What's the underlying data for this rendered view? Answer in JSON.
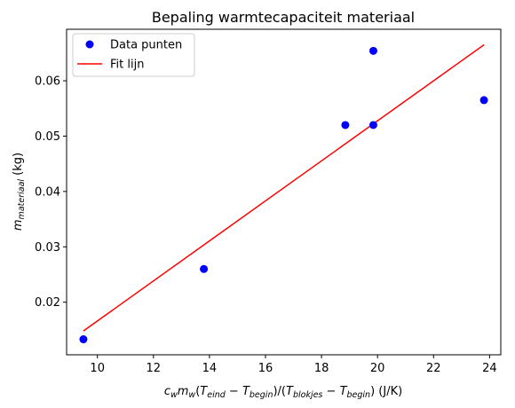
{
  "chart_data": {
    "type": "scatter",
    "title": "Bepaling warmtecapaciteit materiaal",
    "xlabel": {
      "parts": [
        {
          "t": "c",
          "i": true
        },
        {
          "t": "w",
          "i": true,
          "sub": true
        },
        {
          "t": "m",
          "i": true
        },
        {
          "t": "w",
          "i": true,
          "sub": true
        },
        {
          "t": "(",
          "i": false
        },
        {
          "t": "T",
          "i": true
        },
        {
          "t": "eind",
          "i": true,
          "sub": true
        },
        {
          "t": " − ",
          "i": false
        },
        {
          "t": "T",
          "i": true
        },
        {
          "t": "begin",
          "i": true,
          "sub": true
        },
        {
          "t": ")/(",
          "i": false
        },
        {
          "t": "T",
          "i": true
        },
        {
          "t": "blokjes",
          "i": true,
          "sub": true
        },
        {
          "t": " − ",
          "i": false
        },
        {
          "t": "T",
          "i": true
        },
        {
          "t": "begin",
          "i": true,
          "sub": true
        },
        {
          "t": ")  (J/K)",
          "i": false
        }
      ]
    },
    "ylabel": {
      "parts": [
        {
          "t": "m",
          "i": true
        },
        {
          "t": "materiaal",
          "i": true,
          "sub": true
        },
        {
          "t": " (kg)",
          "i": false
        }
      ]
    },
    "xlim": [
      8.9,
      24.4
    ],
    "ylim": [
      0.0105,
      0.0693
    ],
    "xticks": [
      10,
      12,
      14,
      16,
      18,
      20,
      22,
      24
    ],
    "yticks": [
      0.02,
      0.03,
      0.04,
      0.05,
      0.06
    ],
    "ytick_labels": [
      "0.02",
      "0.03",
      "0.04",
      "0.05",
      "0.06"
    ],
    "grid": false,
    "legend_position": "top-left",
    "series": [
      {
        "name": "Data punten",
        "kind": "scatter",
        "color": "#0000ff",
        "x": [
          9.5,
          13.8,
          18.85,
          19.85,
          19.85,
          23.8
        ],
        "y": [
          0.0133,
          0.026,
          0.052,
          0.052,
          0.0654,
          0.0565
        ]
      },
      {
        "name": "Fit lijn",
        "kind": "line",
        "color": "#ff0000",
        "x": [
          9.5,
          23.8
        ],
        "y": [
          0.0148,
          0.0665
        ]
      }
    ]
  }
}
